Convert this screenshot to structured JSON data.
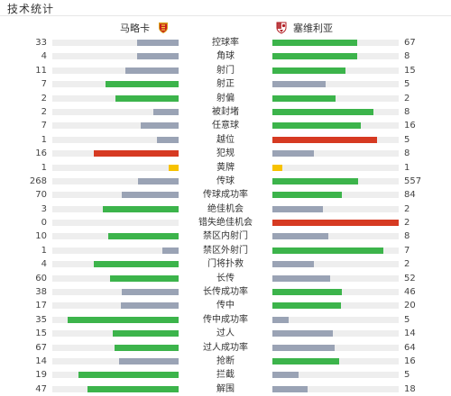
{
  "title": "技术统计",
  "home_team": {
    "name": "马略卡",
    "icon": "mallorca-crest-icon"
  },
  "away_team": {
    "name": "塞维利亚",
    "icon": "sevilla-crest-icon"
  },
  "colors": {
    "green": "#3cb44b",
    "gray": "#9aa3b5",
    "red": "#d63a22",
    "yellow": "#f7c200",
    "track": "#eeeeee"
  },
  "stats": [
    {
      "label": "控球率",
      "home": "33",
      "away": "67",
      "home_pct": 33,
      "away_pct": 67,
      "home_color": "gray",
      "away_color": "green"
    },
    {
      "label": "角球",
      "home": "4",
      "away": "8",
      "home_pct": 33,
      "away_pct": 67,
      "home_color": "gray",
      "away_color": "green"
    },
    {
      "label": "射门",
      "home": "11",
      "away": "15",
      "home_pct": 42,
      "away_pct": 58,
      "home_color": "gray",
      "away_color": "green"
    },
    {
      "label": "射正",
      "home": "7",
      "away": "5",
      "home_pct": 58,
      "away_pct": 42,
      "home_color": "green",
      "away_color": "gray"
    },
    {
      "label": "射偏",
      "home": "2",
      "away": "2",
      "home_pct": 50,
      "away_pct": 50,
      "home_color": "green",
      "away_color": "green"
    },
    {
      "label": "被封堵",
      "home": "2",
      "away": "8",
      "home_pct": 20,
      "away_pct": 80,
      "home_color": "gray",
      "away_color": "green"
    },
    {
      "label": "任意球",
      "home": "7",
      "away": "16",
      "home_pct": 30,
      "away_pct": 70,
      "home_color": "gray",
      "away_color": "green"
    },
    {
      "label": "越位",
      "home": "1",
      "away": "5",
      "home_pct": 17,
      "away_pct": 83,
      "home_color": "gray",
      "away_color": "red"
    },
    {
      "label": "犯规",
      "home": "16",
      "away": "8",
      "home_pct": 67,
      "away_pct": 33,
      "home_color": "red",
      "away_color": "gray"
    },
    {
      "label": "黄牌",
      "home": "1",
      "away": "1",
      "home_pct": 8,
      "away_pct": 8,
      "home_color": "yellow",
      "away_color": "yellow"
    },
    {
      "label": "传球",
      "home": "268",
      "away": "557",
      "home_pct": 32,
      "away_pct": 68,
      "home_color": "gray",
      "away_color": "green"
    },
    {
      "label": "传球成功率",
      "home": "70",
      "away": "84",
      "home_pct": 45,
      "away_pct": 55,
      "home_color": "gray",
      "away_color": "green"
    },
    {
      "label": "绝佳机会",
      "home": "3",
      "away": "2",
      "home_pct": 60,
      "away_pct": 40,
      "home_color": "green",
      "away_color": "gray"
    },
    {
      "label": "错失绝佳机会",
      "home": "0",
      "away": "2",
      "home_pct": 0,
      "away_pct": 100,
      "home_color": "gray",
      "away_color": "red"
    },
    {
      "label": "禁区内射门",
      "home": "10",
      "away": "8",
      "home_pct": 56,
      "away_pct": 44,
      "home_color": "green",
      "away_color": "gray"
    },
    {
      "label": "禁区外射门",
      "home": "1",
      "away": "7",
      "home_pct": 13,
      "away_pct": 88,
      "home_color": "gray",
      "away_color": "green"
    },
    {
      "label": "门将扑救",
      "home": "4",
      "away": "2",
      "home_pct": 67,
      "away_pct": 33,
      "home_color": "green",
      "away_color": "gray"
    },
    {
      "label": "长传",
      "home": "60",
      "away": "52",
      "home_pct": 54,
      "away_pct": 46,
      "home_color": "green",
      "away_color": "gray"
    },
    {
      "label": "长传成功率",
      "home": "38",
      "away": "46",
      "home_pct": 45,
      "away_pct": 55,
      "home_color": "gray",
      "away_color": "green"
    },
    {
      "label": "传中",
      "home": "17",
      "away": "20",
      "home_pct": 46,
      "away_pct": 54,
      "home_color": "gray",
      "away_color": "green"
    },
    {
      "label": "传中成功率",
      "home": "35",
      "away": "5",
      "home_pct": 88,
      "away_pct": 13,
      "home_color": "green",
      "away_color": "gray"
    },
    {
      "label": "过人",
      "home": "15",
      "away": "14",
      "home_pct": 52,
      "away_pct": 48,
      "home_color": "green",
      "away_color": "gray"
    },
    {
      "label": "过人成功率",
      "home": "67",
      "away": "64",
      "home_pct": 51,
      "away_pct": 49,
      "home_color": "green",
      "away_color": "gray"
    },
    {
      "label": "抢断",
      "home": "14",
      "away": "16",
      "home_pct": 47,
      "away_pct": 53,
      "home_color": "gray",
      "away_color": "green"
    },
    {
      "label": "拦截",
      "home": "19",
      "away": "5",
      "home_pct": 79,
      "away_pct": 21,
      "home_color": "green",
      "away_color": "gray"
    },
    {
      "label": "解围",
      "home": "47",
      "away": "18",
      "home_pct": 72,
      "away_pct": 28,
      "home_color": "green",
      "away_color": "gray"
    }
  ]
}
